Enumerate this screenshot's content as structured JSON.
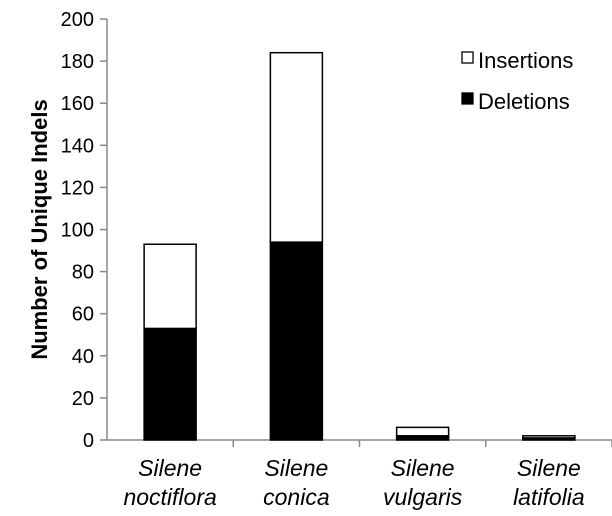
{
  "chart_data": {
    "type": "bar",
    "stacked": true,
    "categories": [
      [
        "Silene",
        "noctiflora"
      ],
      [
        "Silene",
        "conica"
      ],
      [
        "Silene",
        "vulgaris"
      ],
      [
        "Silene",
        "latifolia"
      ]
    ],
    "series": [
      {
        "name": "Deletions",
        "values": [
          53,
          94,
          2,
          1
        ],
        "color": "#000000"
      },
      {
        "name": "Insertions",
        "values": [
          40,
          90,
          4,
          1
        ],
        "color": "#ffffff"
      }
    ],
    "legend_order": [
      "Insertions",
      "Deletions"
    ],
    "title": "",
    "xlabel": "",
    "ylabel": "Number of Unique Indels",
    "ylim": [
      0,
      200
    ],
    "yticks": [
      0,
      20,
      40,
      60,
      80,
      100,
      120,
      140,
      160,
      180,
      200
    ],
    "grid": false,
    "legend_position": "top-right"
  }
}
